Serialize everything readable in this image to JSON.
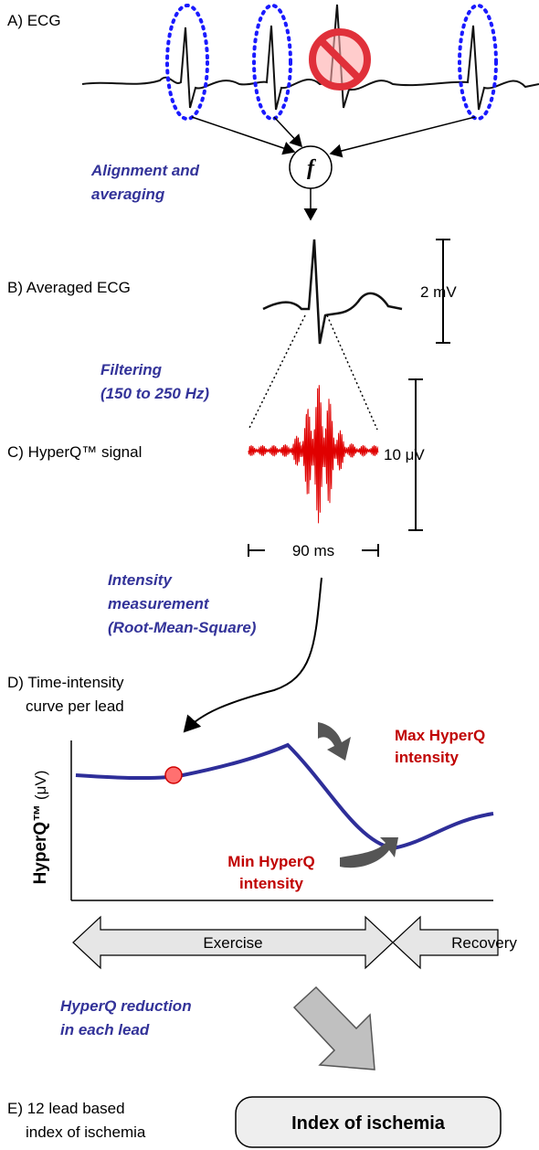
{
  "panel_a": {
    "label": "A) ECG",
    "step": [
      "Alignment and",
      "averaging"
    ],
    "function": "f"
  },
  "panel_b": {
    "label": "B) Averaged ECG",
    "scale": "2 mV",
    "step": [
      "Filtering",
      "(150 to 250 Hz)"
    ]
  },
  "panel_c": {
    "label": "C) HyperQ™ signal",
    "scale": "10 μV",
    "duration": "90 ms",
    "step": [
      "Intensity",
      "measurement",
      "(Root-Mean-Square)"
    ]
  },
  "panel_d": {
    "label": [
      "D) Time-intensity",
      "curve per lead"
    ],
    "y_axis": {
      "name": "HyperQ™",
      "unit": "(μV)"
    },
    "max_note": [
      "Max HyperQ",
      "intensity"
    ],
    "min_note": [
      "Min HyperQ",
      "intensity"
    ],
    "phases": [
      "Exercise",
      "Recovery"
    ],
    "step": [
      "HyperQ reduction",
      "in each lead"
    ]
  },
  "panel_e": {
    "label": [
      "E) 12 lead based",
      "index of ischemia"
    ],
    "result": "Index of ischemia"
  }
}
